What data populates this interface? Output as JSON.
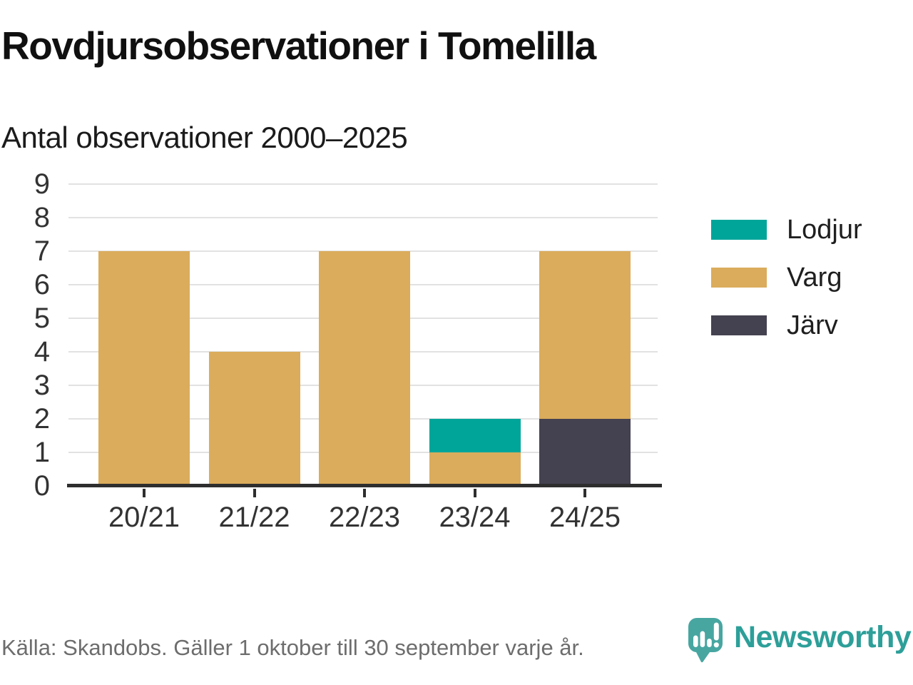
{
  "page": {
    "title": "Rovdjursobservationer i Tomelilla",
    "subtitle": "Antal observationer 2000–2025",
    "source": "Källa: Skandobs. Gäller 1 oktober till 30 september varje år.",
    "brand_name": "Newsworthy"
  },
  "icons": {
    "logo": "newsworthy-speech-bubble-bar-chart-icon"
  },
  "colors": {
    "lodjur": "#00a59a",
    "varg": "#dbac5c",
    "jarv": "#444150",
    "axis_line": "#2e2e2e",
    "gridline": "#e2e2e2",
    "title_text": "#101010",
    "axis_text": "#333333",
    "legend_text": "#1f1f1f",
    "source_text": "#6d6d6d",
    "brand_bubble": "#48a6a1",
    "brand_wordmark": "#2d9f99"
  },
  "chart_data": {
    "type": "bar",
    "stacked": true,
    "title": "Rovdjursobservationer i Tomelilla",
    "subtitle": "Antal observationer 2000–2025",
    "xlabel": "",
    "ylabel": "",
    "categories": [
      "20/21",
      "21/22",
      "22/23",
      "23/24",
      "24/25"
    ],
    "series": [
      {
        "name": "Lodjur",
        "color": "#00a59a",
        "values": [
          0,
          0,
          0,
          1,
          0
        ]
      },
      {
        "name": "Varg",
        "color": "#dbac5c",
        "values": [
          7,
          4,
          7,
          1,
          5
        ]
      },
      {
        "name": "Järv",
        "color": "#444150",
        "values": [
          0,
          0,
          0,
          0,
          2
        ]
      }
    ],
    "stack_order_bottom_to_top": [
      "Järv",
      "Varg",
      "Lodjur"
    ],
    "ylim": [
      0,
      9
    ],
    "y_ticks": [
      0,
      1,
      2,
      3,
      4,
      5,
      6,
      7,
      8,
      9
    ],
    "grid": "horizontal",
    "legend_position": "right"
  }
}
